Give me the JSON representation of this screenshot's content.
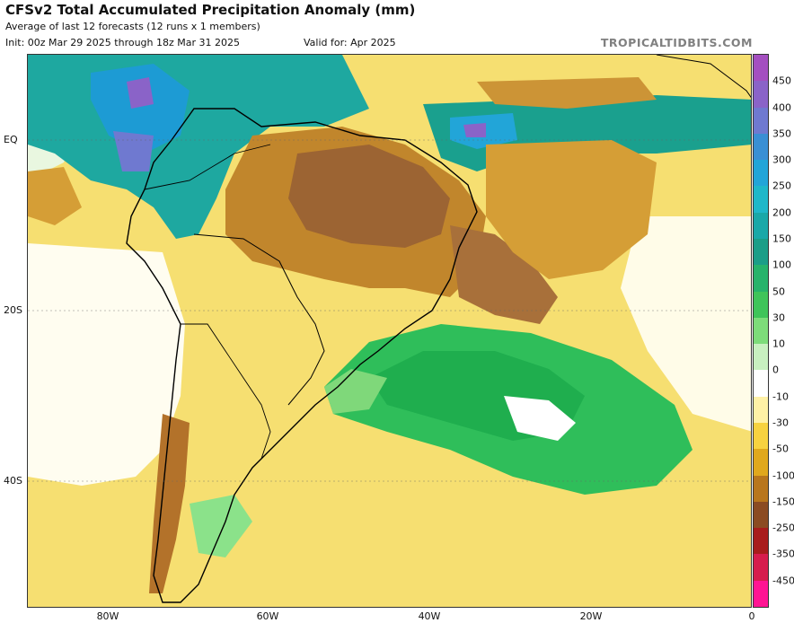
{
  "header": {
    "title": "CFSv2 Total Accumulated Precipitation Anomaly (mm)",
    "subtitle": "Average of last 12 forecasts (12 runs x 1 members)",
    "init": "Init: 00z Mar 29 2025 through 18z Mar 31 2025",
    "valid": "Valid for: Apr 2025",
    "brand": "TROPICALTIDBITS.COM"
  },
  "axes": {
    "lat_labels": [
      "EQ",
      "20S",
      "40S"
    ],
    "lon_labels": [
      "80W",
      "60W",
      "40W",
      "20W",
      "0"
    ]
  },
  "colorbar": {
    "labels": [
      "450",
      "400",
      "350",
      "300",
      "250",
      "200",
      "150",
      "100",
      "50",
      "30",
      "10",
      "0",
      "-10",
      "-30",
      "-50",
      "-100",
      "-150",
      "-250",
      "-350",
      "-450"
    ],
    "colors": [
      "#a44fc0",
      "#8a63c8",
      "#6f79d0",
      "#3a8fd4",
      "#22a5d8",
      "#1fb7c9",
      "#1aa8a8",
      "#1b9e88",
      "#27b36b",
      "#3fc45a",
      "#7ddc7a",
      "#c8f0c0",
      "#ffffff",
      "#fff1a6",
      "#f7d240",
      "#e0a81c",
      "#b8761c",
      "#8b4b22",
      "#a81c1c",
      "#d61c4d",
      "#ff1493"
    ]
  },
  "map": {
    "colors": {
      "ocean_base": "#f8e070",
      "dry_strong": "#9c6433",
      "dry_moderate": "#c1862c",
      "dry_light": "#e0b43a",
      "wet_green": "#2fbe5a",
      "wet_light": "#8be28a",
      "wet_teal": "#1aa79a",
      "wet_blue": "#1d9bd4",
      "wet_purple": "#8a63c8",
      "neutral": "#ffffff",
      "land_border": "#000000"
    }
  }
}
